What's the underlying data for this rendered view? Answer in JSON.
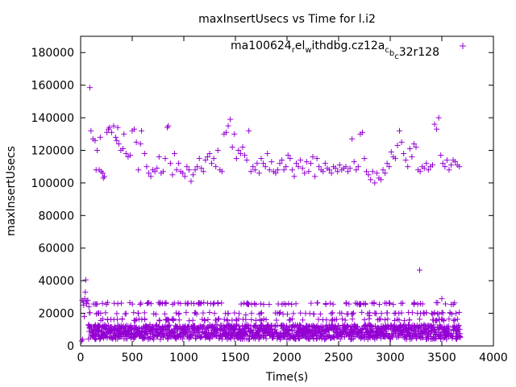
{
  "chart_data": {
    "type": "scatter",
    "title": "maxInsertUsecs vs Time for l.i2",
    "xlabel": "Time(s)",
    "ylabel": "maxInsertUsecs",
    "xlim": [
      0,
      4000
    ],
    "ylim": [
      0,
      190000
    ],
    "xticks": [
      0,
      500,
      1000,
      1500,
      2000,
      2500,
      3000,
      3500,
      4000
    ],
    "yticks": [
      0,
      20000,
      40000,
      60000,
      80000,
      100000,
      120000,
      140000,
      160000,
      180000
    ],
    "grid": false,
    "legend_position": "top-right",
    "series": [
      {
        "name": "ma100624_rel_withdbg.cz12a_c_b_c32r128",
        "color": "#9400d3",
        "marker": "plus",
        "points": [
          [
            15,
            28000
          ],
          [
            25,
            27000
          ],
          [
            30,
            25000
          ],
          [
            40,
            29000
          ],
          [
            45,
            33000
          ],
          [
            50,
            40500
          ],
          [
            55,
            27000
          ],
          [
            60,
            26000
          ],
          [
            70,
            28000
          ],
          [
            80,
            24000
          ],
          [
            10,
            3000
          ],
          [
            20,
            4000
          ],
          [
            35,
            18000
          ],
          [
            90,
            158500
          ],
          [
            100,
            132000
          ],
          [
            120,
            127000
          ],
          [
            140,
            126000
          ],
          [
            150,
            108000
          ],
          [
            160,
            120000
          ],
          [
            180,
            108000
          ],
          [
            190,
            128000
          ],
          [
            200,
            107000
          ],
          [
            215,
            106000
          ],
          [
            220,
            103000
          ],
          [
            230,
            104000
          ],
          [
            255,
            131000
          ],
          [
            270,
            133000
          ],
          [
            280,
            134000
          ],
          [
            300,
            131000
          ],
          [
            320,
            135000
          ],
          [
            340,
            128000
          ],
          [
            350,
            126000
          ],
          [
            360,
            134000
          ],
          [
            370,
            124000
          ],
          [
            390,
            120000
          ],
          [
            410,
            121000
          ],
          [
            420,
            130000
          ],
          [
            440,
            118000
          ],
          [
            460,
            116000
          ],
          [
            480,
            117000
          ],
          [
            500,
            132000
          ],
          [
            520,
            133000
          ],
          [
            540,
            125000
          ],
          [
            560,
            108000
          ],
          [
            580,
            124000
          ],
          [
            590,
            132000
          ],
          [
            620,
            118000
          ],
          [
            640,
            110000
          ],
          [
            660,
            106000
          ],
          [
            680,
            104000
          ],
          [
            700,
            108000
          ],
          [
            720,
            107000
          ],
          [
            740,
            109000
          ],
          [
            760,
            116000
          ],
          [
            780,
            106000
          ],
          [
            800,
            107000
          ],
          [
            820,
            115000
          ],
          [
            840,
            134000
          ],
          [
            850,
            135000
          ],
          [
            870,
            112000
          ],
          [
            890,
            105000
          ],
          [
            910,
            118000
          ],
          [
            930,
            108000
          ],
          [
            950,
            112000
          ],
          [
            970,
            107000
          ],
          [
            990,
            106000
          ],
          [
            1010,
            104000
          ],
          [
            1030,
            110000
          ],
          [
            1050,
            108000
          ],
          [
            1070,
            101000
          ],
          [
            1090,
            105000
          ],
          [
            1110,
            108000
          ],
          [
            1130,
            110000
          ],
          [
            1150,
            115000
          ],
          [
            1170,
            109000
          ],
          [
            1190,
            107000
          ],
          [
            1210,
            114000
          ],
          [
            1230,
            116000
          ],
          [
            1250,
            118000
          ],
          [
            1270,
            112000
          ],
          [
            1290,
            115000
          ],
          [
            1310,
            110000
          ],
          [
            1330,
            120000
          ],
          [
            1350,
            108000
          ],
          [
            1370,
            107000
          ],
          [
            1390,
            130000
          ],
          [
            1410,
            131000
          ],
          [
            1430,
            135000
          ],
          [
            1450,
            139000
          ],
          [
            1470,
            122000
          ],
          [
            1490,
            130000
          ],
          [
            1510,
            115000
          ],
          [
            1530,
            120000
          ],
          [
            1550,
            118000
          ],
          [
            1570,
            122000
          ],
          [
            1590,
            117000
          ],
          [
            1610,
            114000
          ],
          [
            1630,
            132000
          ],
          [
            1650,
            107000
          ],
          [
            1670,
            110000
          ],
          [
            1690,
            108000
          ],
          [
            1710,
            112000
          ],
          [
            1730,
            106000
          ],
          [
            1750,
            115000
          ],
          [
            1770,
            112000
          ],
          [
            1790,
            110000
          ],
          [
            1810,
            118000
          ],
          [
            1830,
            108000
          ],
          [
            1850,
            113000
          ],
          [
            1870,
            107000
          ],
          [
            1890,
            106000
          ],
          [
            1910,
            108000
          ],
          [
            1930,
            112000
          ],
          [
            1950,
            114000
          ],
          [
            1970,
            108000
          ],
          [
            1990,
            110000
          ],
          [
            2010,
            117000
          ],
          [
            2030,
            115000
          ],
          [
            2050,
            108000
          ],
          [
            2070,
            104000
          ],
          [
            2090,
            112000
          ],
          [
            2110,
            110000
          ],
          [
            2130,
            114000
          ],
          [
            2150,
            109000
          ],
          [
            2170,
            106000
          ],
          [
            2190,
            113000
          ],
          [
            2210,
            107000
          ],
          [
            2230,
            112000
          ],
          [
            2250,
            116000
          ],
          [
            2270,
            104000
          ],
          [
            2290,
            115000
          ],
          [
            2310,
            110000
          ],
          [
            2330,
            108000
          ],
          [
            2350,
            107000
          ],
          [
            2370,
            112000
          ],
          [
            2390,
            109000
          ],
          [
            2410,
            108000
          ],
          [
            2430,
            106000
          ],
          [
            2450,
            110000
          ],
          [
            2470,
            109000
          ],
          [
            2490,
            107000
          ],
          [
            2510,
            111000
          ],
          [
            2530,
            108000
          ],
          [
            2550,
            109000
          ],
          [
            2570,
            110000
          ],
          [
            2590,
            107000
          ],
          [
            2610,
            109000
          ],
          [
            2630,
            127000
          ],
          [
            2650,
            113000
          ],
          [
            2670,
            108000
          ],
          [
            2690,
            110000
          ],
          [
            2710,
            130000
          ],
          [
            2730,
            131000
          ],
          [
            2750,
            115000
          ],
          [
            2770,
            107000
          ],
          [
            2790,
            105000
          ],
          [
            2810,
            102000
          ],
          [
            2830,
            107000
          ],
          [
            2850,
            100000
          ],
          [
            2870,
            106000
          ],
          [
            2890,
            103000
          ],
          [
            2910,
            102000
          ],
          [
            2930,
            108000
          ],
          [
            2950,
            106000
          ],
          [
            2970,
            112000
          ],
          [
            2990,
            110000
          ],
          [
            3010,
            119000
          ],
          [
            3030,
            116000
          ],
          [
            3050,
            115000
          ],
          [
            3070,
            123000
          ],
          [
            3090,
            132000
          ],
          [
            3110,
            125000
          ],
          [
            3130,
            118000
          ],
          [
            3150,
            114000
          ],
          [
            3170,
            110000
          ],
          [
            3190,
            121000
          ],
          [
            3210,
            116000
          ],
          [
            3230,
            124000
          ],
          [
            3250,
            122000
          ],
          [
            3270,
            108000
          ],
          [
            3290,
            107000
          ],
          [
            3310,
            110000
          ],
          [
            3330,
            109000
          ],
          [
            3350,
            112000
          ],
          [
            3370,
            108000
          ],
          [
            3390,
            110000
          ],
          [
            3410,
            111000
          ],
          [
            3430,
            136000
          ],
          [
            3450,
            133000
          ],
          [
            3470,
            140000
          ],
          [
            3490,
            117000
          ],
          [
            3510,
            112000
          ],
          [
            3530,
            110000
          ],
          [
            3550,
            114000
          ],
          [
            3570,
            108000
          ],
          [
            3590,
            111000
          ],
          [
            3610,
            114000
          ],
          [
            3630,
            113000
          ],
          [
            3650,
            111000
          ],
          [
            3670,
            110000
          ],
          [
            3285,
            46500
          ],
          [
            3460,
            26500
          ],
          [
            3500,
            29000
          ],
          [
            2950,
            16000
          ],
          [
            2800,
            18500
          ],
          [
            1600,
            19000
          ],
          [
            1200,
            16000
          ]
        ]
      }
    ]
  }
}
